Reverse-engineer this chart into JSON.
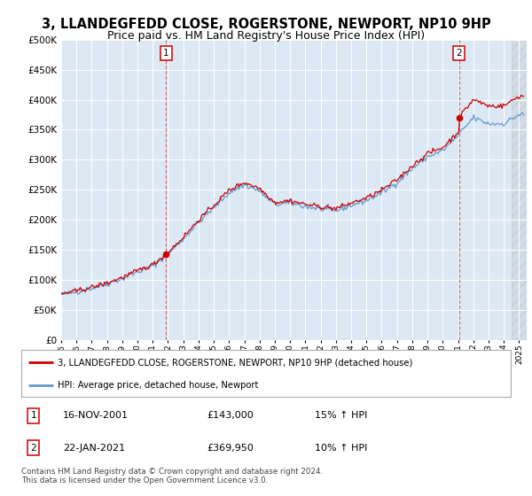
{
  "title": "3, LLANDEGFEDD CLOSE, ROGERSTONE, NEWPORT, NP10 9HP",
  "subtitle": "Price paid vs. HM Land Registry's House Price Index (HPI)",
  "ylim": [
    0,
    500000
  ],
  "yticks": [
    0,
    50000,
    100000,
    150000,
    200000,
    250000,
    300000,
    350000,
    400000,
    450000,
    500000
  ],
  "ytick_labels": [
    "£0",
    "£50K",
    "£100K",
    "£150K",
    "£200K",
    "£250K",
    "£300K",
    "£350K",
    "£400K",
    "£450K",
    "£500K"
  ],
  "xlim_start": 1995.0,
  "xlim_end": 2025.5,
  "plot_bg_color": "#dce9f5",
  "legend_line1": "3, LLANDEGFEDD CLOSE, ROGERSTONE, NEWPORT, NP10 9HP (detached house)",
  "legend_line2": "HPI: Average price, detached house, Newport",
  "red_line_color": "#cc0000",
  "blue_line_color": "#6699cc",
  "transaction1": {
    "date_label": "16-NOV-2001",
    "price": 143000,
    "note": "15% ↑ HPI",
    "x": 2001.88
  },
  "transaction2": {
    "date_label": "22-JAN-2021",
    "price": 369950,
    "note": "10% ↑ HPI",
    "x": 2021.06
  },
  "footer": "Contains HM Land Registry data © Crown copyright and database right 2024.\nThis data is licensed under the Open Government Licence v3.0.",
  "grid_color": "#ffffff",
  "sale1_year": 2001.88,
  "sale1_price": 143000,
  "sale2_year": 2021.06,
  "sale2_price": 369950
}
